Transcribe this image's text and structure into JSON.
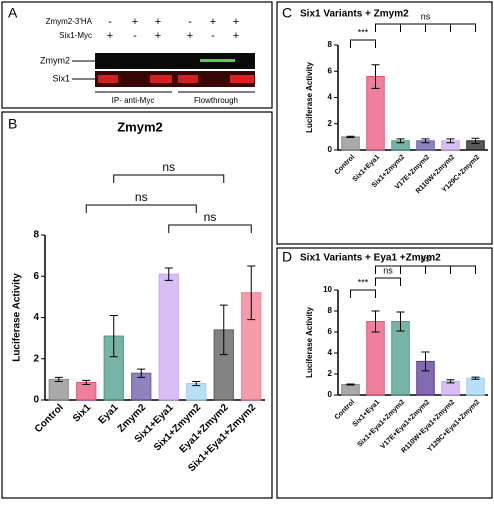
{
  "blot": {
    "label": "A",
    "rows": [
      {
        "label": "Zmym2-3'HA",
        "signs": [
          "-",
          "+",
          "+",
          "-",
          "+",
          "+"
        ]
      },
      {
        "label": "Six1-Myc",
        "signs": [
          "+",
          "-",
          "+",
          "+",
          "-",
          "+"
        ]
      }
    ],
    "bands": [
      "Zmym2",
      "Six1"
    ],
    "sections": [
      "IP- anti-Myc",
      "Flowthrough"
    ]
  },
  "chart_data": [
    {
      "type": "bar",
      "label": "B",
      "title": "Zmym2",
      "ylabel": "Luciferase Activity",
      "categories": [
        "Control",
        "Six1",
        "Eya1",
        "Zmym2",
        "Six1+Eya1",
        "Six1+Zmym2",
        "Eya1+Zmym2",
        "Six1+Eya1+Zmym2"
      ],
      "values": [
        1,
        0.85,
        3.1,
        1.3,
        6.1,
        0.8,
        3.4,
        5.2
      ],
      "errors": [
        0.1,
        0.1,
        1.0,
        0.2,
        0.3,
        0.1,
        1.2,
        1.3
      ],
      "colors": [
        "#8c8c8c",
        "#e8557a",
        "#4a9a8a",
        "#6a5aa8",
        "#c9a8f2",
        "#9fd4f2",
        "#5a5a5a",
        "#f27a8e"
      ],
      "ylim": [
        0,
        8
      ],
      "yticks": [
        0,
        2,
        4,
        6,
        8
      ],
      "annotations": [
        "ns",
        "ns",
        "ns"
      ]
    },
    {
      "type": "bar",
      "label": "C",
      "title": "Six1 Variants + Zmym2",
      "ylabel": "Luciferase Activity",
      "categories": [
        "Control",
        "Six1+Eya1",
        "Six1+Zmym2",
        "V17E+Zmym2",
        "R110W+Zmym2",
        "Y129C+Zmym2"
      ],
      "values": [
        1,
        5.6,
        0.7,
        0.7,
        0.7,
        0.7
      ],
      "errors": [
        0.05,
        0.9,
        0.15,
        0.15,
        0.15,
        0.2
      ],
      "colors": [
        "#8c8c8c",
        "#e8557a",
        "#4a9a8a",
        "#6a5aa8",
        "#c9a8f2",
        "#222222"
      ],
      "ylim": [
        0,
        8
      ],
      "yticks": [
        0,
        2,
        4,
        6,
        8
      ],
      "annotations": [
        "***",
        "ns"
      ]
    },
    {
      "type": "bar",
      "label": "D",
      "title": "Six1 Variants + Eya1 +Zmym2",
      "ylabel": "Luciferase Activity",
      "categories": [
        "Control",
        "Six1+Eya1",
        "Six1+Eya1+Zmym2",
        "V17E+Eya1+Zmym2",
        "R110W+Eya1+Zmym2",
        "Y129C+Eya1+Zmym2"
      ],
      "values": [
        1,
        7,
        7,
        3.2,
        1.3,
        1.6
      ],
      "errors": [
        0.05,
        1.0,
        0.9,
        0.9,
        0.15,
        0.1
      ],
      "colors": [
        "#8c8c8c",
        "#e8557a",
        "#4a9a8a",
        "#5a3a9a",
        "#c9a8f2",
        "#9fd4f2"
      ],
      "ylim": [
        0,
        10
      ],
      "yticks": [
        0,
        2,
        4,
        6,
        8,
        10
      ],
      "annotations": [
        "***",
        "ns",
        "ns"
      ]
    }
  ]
}
